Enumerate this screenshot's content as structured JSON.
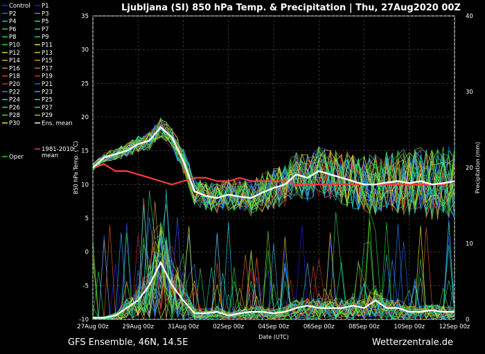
{
  "chart_data": {
    "type": "line",
    "title": "Ljubljana  (SI)  850 hPa Temp. & Precipitation | Thu, 27Aug2020 00Z",
    "footer_left": "GFS Ensemble, 46N, 14.5E",
    "footer_right": "Wetterzentrale.de",
    "xlabel": "Date (UTC)",
    "ylabel_left": "850 hPa Temp. (°C)",
    "ylabel_right": "Precipitation (mm)",
    "ylim_left": [
      -10,
      35
    ],
    "ylim_right": [
      0,
      40
    ],
    "y_ticks_left": [
      "-10",
      "-5",
      "0",
      "5",
      "10",
      "15",
      "20",
      "25",
      "30",
      "35"
    ],
    "y_ticks_right": [
      "0",
      "10",
      "20",
      "30",
      "40"
    ],
    "x_ticks": [
      "27Aug 00z",
      "29Aug 00z",
      "31Aug 00z",
      "02Sep 00z",
      "04Sep 00z",
      "06Sep 00z",
      "08Sep 00z",
      "10Sep 00z",
      "12Sep 00z"
    ],
    "x_range_hours": [
      0,
      384
    ],
    "grid": true,
    "legend_placement": "left outside",
    "legend": [
      {
        "name": "Control",
        "color": "#2a2aff"
      },
      {
        "name": "P1",
        "color": "#1e1eff"
      },
      {
        "name": "P2",
        "color": "#3a5cff"
      },
      {
        "name": "P3",
        "color": "#2f8cff"
      },
      {
        "name": "P4",
        "color": "#33b5e8"
      },
      {
        "name": "P5",
        "color": "#2fd0d0"
      },
      {
        "name": "P6",
        "color": "#2ed38f"
      },
      {
        "name": "P7",
        "color": "#2fd87a"
      },
      {
        "name": "P8",
        "color": "#27d85a"
      },
      {
        "name": "P9",
        "color": "#2cd93d"
      },
      {
        "name": "P10",
        "color": "#33e02b"
      },
      {
        "name": "P11",
        "color": "#e6e62a"
      },
      {
        "name": "P12",
        "color": "#d6d62a"
      },
      {
        "name": "P13",
        "color": "#d8c22a"
      },
      {
        "name": "P14",
        "color": "#d8a62a"
      },
      {
        "name": "P15",
        "color": "#d8902a"
      },
      {
        "name": "P16",
        "color": "#e07a2a"
      },
      {
        "name": "P17",
        "color": "#e0602a"
      },
      {
        "name": "P18",
        "color": "#e0482a"
      },
      {
        "name": "P19",
        "color": "#d8302a"
      },
      {
        "name": "P20",
        "color": "#d02a2a"
      },
      {
        "name": "P21",
        "color": "#2a62ff"
      },
      {
        "name": "P22",
        "color": "#2a8aff"
      },
      {
        "name": "P23",
        "color": "#2ab0ff"
      },
      {
        "name": "P24",
        "color": "#2ad8ff"
      },
      {
        "name": "P25",
        "color": "#2ad8b0"
      },
      {
        "name": "P26",
        "color": "#2ad88a"
      },
      {
        "name": "P27",
        "color": "#2ad860"
      },
      {
        "name": "P28",
        "color": "#4ad82a"
      },
      {
        "name": "P29",
        "color": "#7ad82a"
      },
      {
        "name": "P30",
        "color": "#f0f02a"
      },
      {
        "name": "Ens. mean",
        "color": "#ffffff"
      },
      {
        "name": "1981-2010\nmean",
        "color": "#ff3a3a"
      },
      {
        "name": "Oper",
        "color": "#1fe01f"
      }
    ],
    "series_summary": [
      {
        "name": "Ens. mean",
        "axis": "left",
        "color": "#ffffff",
        "x_hours": [
          0,
          12,
          24,
          36,
          48,
          60,
          72,
          84,
          96,
          108,
          120,
          132,
          144,
          156,
          168,
          180,
          192,
          204,
          216,
          228,
          240,
          252,
          264,
          276,
          288,
          300,
          312,
          324,
          336,
          348,
          360,
          372,
          384
        ],
        "y": [
          12.5,
          14,
          14.5,
          15,
          16,
          16.5,
          18.5,
          17,
          13.5,
          9,
          8.3,
          8,
          8.5,
          8.2,
          8,
          8.8,
          9.5,
          10,
          11.5,
          11,
          12,
          11.5,
          11,
          10.5,
          10,
          10,
          10.3,
          10.5,
          10.2,
          10.5,
          10,
          10.2,
          10.5
        ]
      },
      {
        "name": "1981-2010 mean",
        "axis": "left",
        "color": "#ff3a3a",
        "x_hours": [
          0,
          12,
          24,
          36,
          48,
          60,
          72,
          84,
          96,
          108,
          120,
          132,
          144,
          156,
          168,
          180,
          192,
          204,
          216,
          228,
          240,
          252,
          264,
          276,
          288,
          300,
          312,
          324,
          336,
          348,
          360,
          372,
          384
        ],
        "y": [
          12.5,
          13,
          12,
          12,
          11.5,
          11,
          10.5,
          10,
          10.5,
          11,
          11,
          10.5,
          10.5,
          11,
          10.5,
          10.5,
          10.5,
          10.5,
          10,
          10,
          10,
          10,
          10,
          10,
          10,
          10,
          10,
          10,
          10,
          10,
          10,
          10,
          10.5
        ]
      },
      {
        "name": "Ens. mean precipitation",
        "axis": "right",
        "color": "#ffffff",
        "x_hours": [
          0,
          12,
          24,
          36,
          48,
          60,
          72,
          84,
          96,
          108,
          120,
          132,
          144,
          156,
          168,
          180,
          192,
          204,
          216,
          228,
          240,
          252,
          264,
          276,
          288,
          300,
          312,
          324,
          336,
          348,
          360,
          372,
          384
        ],
        "y": [
          0.2,
          0.2,
          0.5,
          1.5,
          2.5,
          4.5,
          7.5,
          4.5,
          2.5,
          0.8,
          0.8,
          1,
          0.5,
          0.8,
          1,
          1,
          0.8,
          1,
          1.5,
          1.8,
          1.5,
          1.5,
          1.5,
          1.8,
          1.5,
          2.5,
          1.5,
          1.5,
          1,
          1,
          1.2,
          1,
          1
        ]
      }
    ]
  }
}
